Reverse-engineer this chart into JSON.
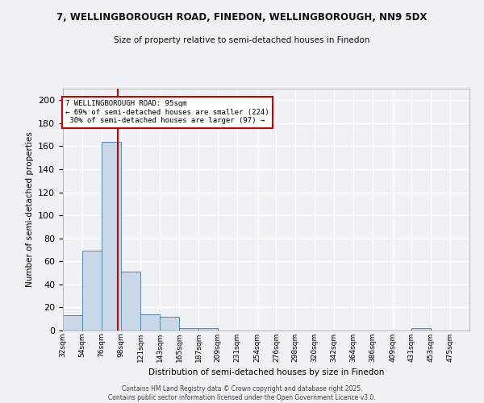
{
  "title": "7, WELLINGBOROUGH ROAD, FINEDON, WELLINGBOROUGH, NN9 5DX",
  "subtitle": "Size of property relative to semi-detached houses in Finedon",
  "xlabel": "Distribution of semi-detached houses by size in Finedon",
  "ylabel": "Number of semi-detached properties",
  "bin_labels": [
    "32sqm",
    "54sqm",
    "76sqm",
    "98sqm",
    "121sqm",
    "143sqm",
    "165sqm",
    "187sqm",
    "209sqm",
    "231sqm",
    "254sqm",
    "276sqm",
    "298sqm",
    "320sqm",
    "342sqm",
    "364sqm",
    "386sqm",
    "409sqm",
    "431sqm",
    "453sqm",
    "475sqm"
  ],
  "bar_values": [
    13,
    69,
    164,
    51,
    14,
    12,
    2,
    2,
    0,
    0,
    0,
    0,
    0,
    0,
    0,
    0,
    0,
    0,
    2,
    0,
    0
  ],
  "bar_color": "#c8d8e8",
  "bar_edge_color": "#5588aa",
  "property_line_x": 95,
  "property_line_color": "#cc0000",
  "annotation_line1": "7 WELLINGBOROUGH ROAD: 95sqm",
  "annotation_line2": "← 69% of semi-detached houses are smaller (224)",
  "annotation_line3": " 30% of semi-detached houses are larger (97) →",
  "annotation_box_color": "#ffffff",
  "annotation_box_edge_color": "#cc0000",
  "ylim": [
    0,
    210
  ],
  "yticks": [
    0,
    20,
    40,
    60,
    80,
    100,
    120,
    140,
    160,
    180,
    200
  ],
  "bin_edges": [
    32,
    54,
    76,
    98,
    121,
    143,
    165,
    187,
    209,
    231,
    254,
    276,
    298,
    320,
    342,
    364,
    386,
    409,
    431,
    453,
    475,
    497
  ],
  "footer_line1": "Contains HM Land Registry data © Crown copyright and database right 2025.",
  "footer_line2": "Contains public sector information licensed under the Open Government Licence v3.0.",
  "background_color": "#eef2f7",
  "grid_color": "#ffffff"
}
